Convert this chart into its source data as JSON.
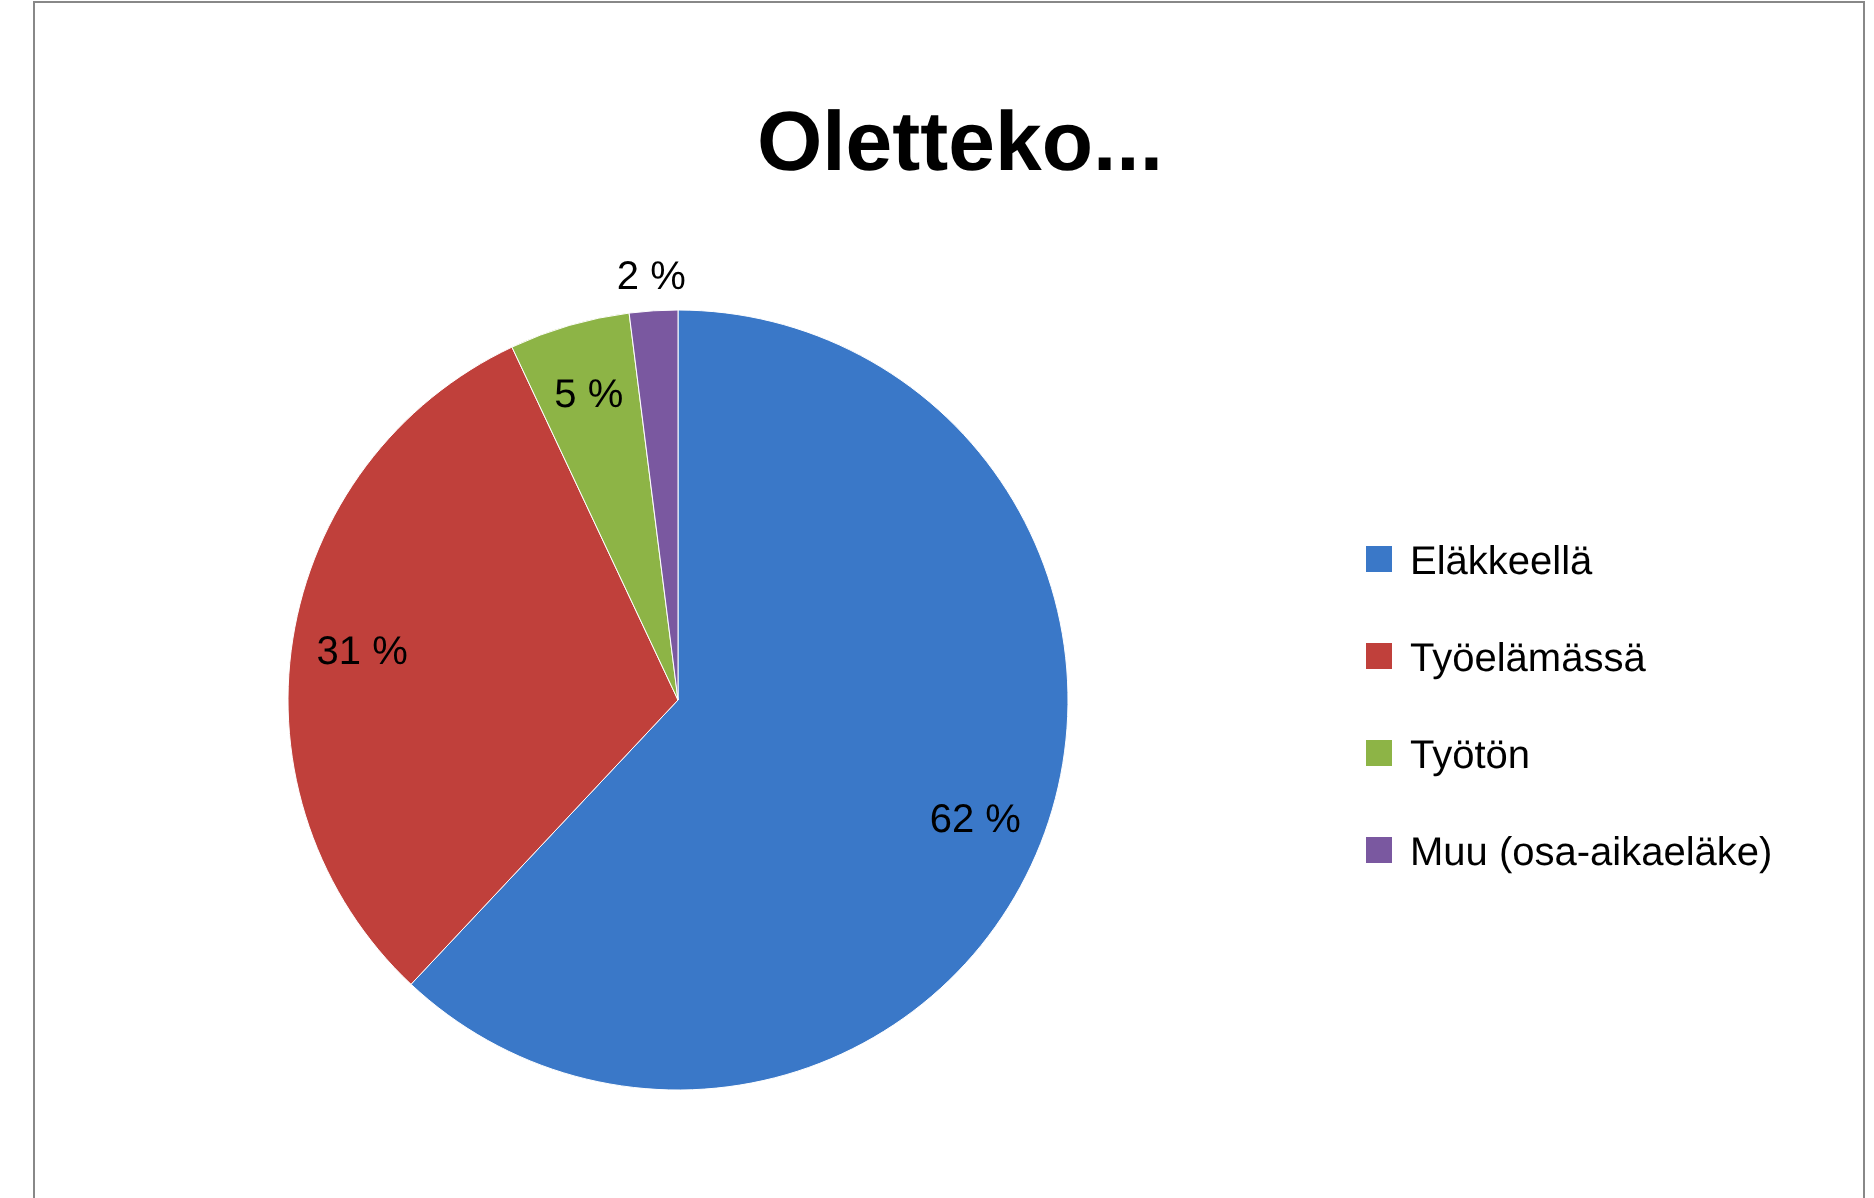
{
  "chart_data": {
    "type": "pie",
    "title": "Oletteko...",
    "categories": [
      "Eläkkeellä",
      "Työelämässä",
      "Työtön",
      "Muu (osa-aikaeläke)"
    ],
    "values": [
      62,
      31,
      5,
      2
    ],
    "value_labels": [
      "62 %",
      "31 %",
      "5 %",
      "2 %"
    ],
    "colors": [
      "#3a78c8",
      "#c0403b",
      "#8db446",
      "#7a58a0"
    ],
    "legend": "right"
  }
}
